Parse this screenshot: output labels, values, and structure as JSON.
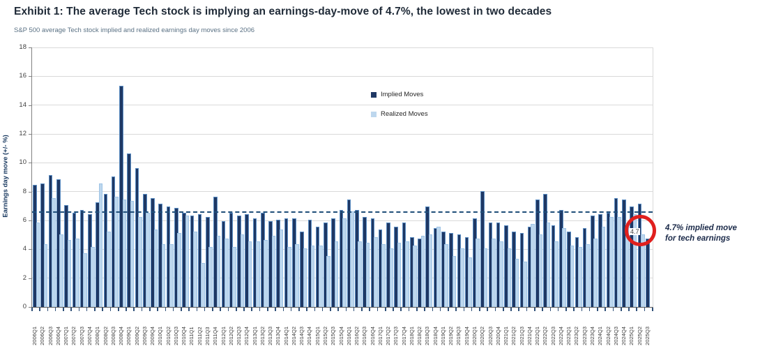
{
  "header": {
    "title": "Exhibit 1: The average Tech stock is implying an earnings-day-move of 4.7%, the lowest in two decades",
    "subtitle": "S&P 500 average Tech stock implied and realized earnings day moves since 2006"
  },
  "chart_data": {
    "type": "bar",
    "ylabel": "Earnings day move (+/- %)",
    "ylim": [
      0,
      18
    ],
    "yticks": [
      0,
      2,
      4,
      6,
      8,
      10,
      12,
      14,
      16,
      18
    ],
    "grid": true,
    "legend_position": "inside-top-center",
    "categories": [
      "2006Q1",
      "2006Q2",
      "2006Q3",
      "2006Q4",
      "2007Q1",
      "2007Q2",
      "2007Q3",
      "2007Q4",
      "2008Q1",
      "2008Q2",
      "2008Q3",
      "2008Q4",
      "2009Q1",
      "2009Q2",
      "2009Q3",
      "2009Q4",
      "2010Q1",
      "2010Q2",
      "2010Q3",
      "2010Q4",
      "2011Q1",
      "2011Q2",
      "2011Q3",
      "2011Q4",
      "2012Q1",
      "2012Q2",
      "2012Q3",
      "2012Q4",
      "2013Q1",
      "2013Q2",
      "2013Q3",
      "2013Q4",
      "2014Q1",
      "2014Q2",
      "2014Q3",
      "2014Q4",
      "2015Q1",
      "2015Q2",
      "2015Q3",
      "2015Q4",
      "2016Q1",
      "2016Q2",
      "2016Q3",
      "2016Q4",
      "2017Q1",
      "2017Q2",
      "2017Q3",
      "2017Q4",
      "2018Q1",
      "2018Q2",
      "2018Q3",
      "2018Q4",
      "2019Q1",
      "2019Q2",
      "2019Q3",
      "2019Q4",
      "2020Q1",
      "2020Q2",
      "2020Q3",
      "2020Q4",
      "2021Q1",
      "2021Q2",
      "2021Q3",
      "2021Q4",
      "2022Q1",
      "2022Q2",
      "2022Q3",
      "2022Q4",
      "2023Q1",
      "2023Q2",
      "2023Q3",
      "2023Q4",
      "2024Q1",
      "2024Q2",
      "2024Q3",
      "2024Q4",
      "2025Q1",
      "2025Q2",
      "2025Q3"
    ],
    "series": [
      {
        "name": "Implied Moves",
        "color": "#1f3864",
        "values": [
          8.4,
          8.5,
          9.1,
          8.8,
          7.0,
          6.5,
          6.7,
          6.4,
          7.2,
          7.8,
          9.0,
          15.3,
          10.6,
          9.6,
          7.8,
          7.5,
          7.1,
          6.9,
          6.8,
          6.5,
          6.3,
          6.4,
          6.2,
          7.6,
          5.9,
          6.5,
          6.3,
          6.4,
          6.1,
          6.5,
          5.9,
          6.0,
          6.1,
          6.1,
          5.2,
          6.0,
          5.5,
          5.8,
          6.1,
          6.7,
          7.4,
          6.7,
          6.2,
          6.1,
          5.3,
          5.8,
          5.5,
          5.8,
          4.8,
          4.7,
          6.9,
          5.4,
          5.2,
          5.1,
          5.0,
          4.8,
          6.1,
          8.0,
          5.8,
          5.8,
          5.6,
          5.2,
          5.1,
          5.5,
          7.4,
          7.8,
          5.6,
          6.7,
          5.2,
          4.8,
          5.4,
          6.3,
          6.4,
          6.5,
          7.5,
          7.4,
          6.9,
          7.1,
          4.7
        ]
      },
      {
        "name": "Realized Moves",
        "color": "#bdd7ee",
        "values": [
          5.8,
          4.3,
          7.5,
          5.0,
          4.6,
          4.7,
          3.7,
          4.1,
          8.5,
          5.2,
          7.6,
          7.4,
          7.3,
          6.2,
          6.5,
          5.3,
          4.3,
          4.3,
          5.1,
          6.3,
          5.2,
          3.0,
          4.1,
          4.9,
          4.7,
          4.1,
          5.0,
          4.5,
          4.5,
          4.6,
          4.9,
          5.3,
          4.1,
          4.3,
          4.0,
          4.2,
          4.2,
          3.5,
          4.5,
          6.1,
          6.6,
          4.5,
          4.4,
          4.8,
          4.3,
          4.0,
          4.4,
          4.5,
          4.2,
          4.9,
          5.0,
          5.5,
          4.3,
          3.5,
          4.0,
          3.4,
          4.7,
          4.0,
          4.7,
          4.5,
          4.0,
          3.3,
          3.1,
          5.7,
          5.0,
          5.8,
          4.5,
          5.4,
          4.2,
          4.1,
          4.3,
          4.7,
          5.5,
          6.2,
          6.2,
          5.7,
          6.4,
          5.0,
          null
        ]
      }
    ],
    "average_line": {
      "value": 6.6,
      "style": "dashed",
      "color": "#1f4e79"
    }
  },
  "annotation": {
    "circle_label": "4.7",
    "circle_color": "#e0201e",
    "text_line1": "4.7% implied move",
    "text_line2": "for tech earnings"
  }
}
